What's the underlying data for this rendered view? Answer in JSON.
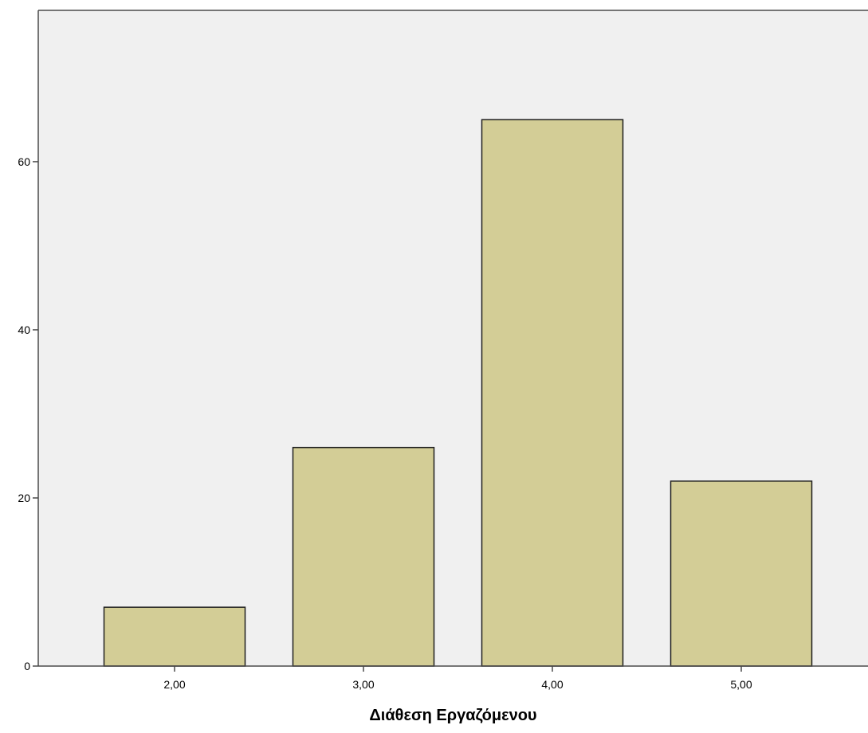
{
  "chart_data": {
    "type": "bar",
    "title": "",
    "xlabel": "Διάθεση Εργαζόμενου",
    "ylabel": "",
    "categories": [
      "2,00",
      "3,00",
      "4,00",
      "5,00"
    ],
    "values": [
      7,
      26,
      65,
      22
    ],
    "ylim": [
      0,
      78
    ],
    "yticks": [
      "0",
      "20",
      "40",
      "60"
    ],
    "ytick_values": [
      0,
      20,
      40,
      60
    ],
    "grid": false,
    "legend": "none",
    "colors": {
      "bar_fill": "#d3cd96",
      "bar_stroke": "#1f1f1f",
      "plot_background": "#f0f0f0",
      "axis": "#4a4a4a"
    }
  }
}
